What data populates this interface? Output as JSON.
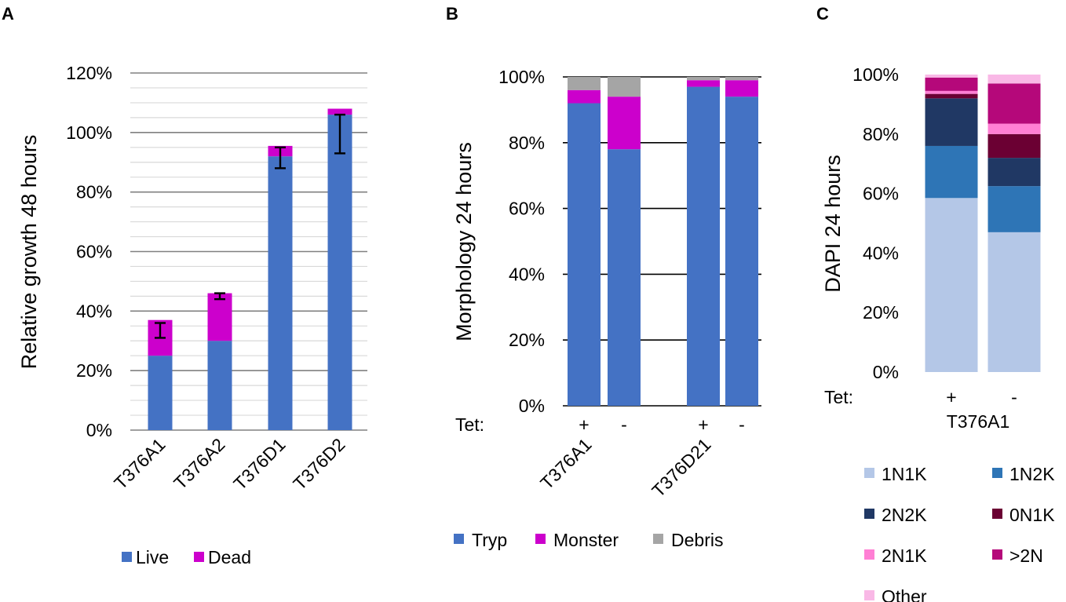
{
  "chart_data": [
    {
      "panel": "A",
      "type": "bar",
      "stacked": true,
      "title": "",
      "xlabel": "",
      "ylabel": "Relative growth 48 hours",
      "ylim": [
        0,
        120
      ],
      "yticks": [
        "0%",
        "20%",
        "40%",
        "60%",
        "80%",
        "100%",
        "120%"
      ],
      "grid": true,
      "categories": [
        "T376A1",
        "T376A2",
        "T376D1",
        "T376D2"
      ],
      "series": [
        {
          "name": "Live",
          "color": "#4472C4",
          "values": [
            25,
            30,
            92,
            106
          ]
        },
        {
          "name": "Dead",
          "color": "#CC00CC",
          "values": [
            12,
            16,
            3.5,
            2
          ]
        }
      ],
      "error_bars": [
        {
          "low": 31,
          "high": 36
        },
        {
          "low": 44,
          "high": 46
        },
        {
          "low": 88,
          "high": 95
        },
        {
          "low": 93,
          "high": 106
        }
      ],
      "legend": "bottom"
    },
    {
      "panel": "B",
      "type": "bar",
      "stacked": true,
      "title": "",
      "xlabel": "",
      "ylabel": "Morphology 24 hours",
      "ylim": [
        0,
        100
      ],
      "yticks": [
        "0%",
        "20%",
        "40%",
        "60%",
        "80%",
        "100%"
      ],
      "grid": true,
      "tet_label": "Tet:",
      "bar_tet": [
        "+",
        "-",
        "+",
        "-"
      ],
      "groups": [
        "T376A1",
        "T376D21"
      ],
      "series": [
        {
          "name": "Tryp",
          "color": "#4472C4",
          "values": [
            92,
            78,
            97,
            94
          ]
        },
        {
          "name": "Monster",
          "color": "#CC00CC",
          "values": [
            4,
            16,
            2,
            5
          ]
        },
        {
          "name": "Debris",
          "color": "#A5A5A5",
          "values": [
            4,
            6,
            1,
            1
          ]
        }
      ],
      "legend": "bottom"
    },
    {
      "panel": "C",
      "type": "bar",
      "stacked": true,
      "title": "",
      "xlabel": "",
      "ylabel": "DAPI 24 hours",
      "ylim": [
        0,
        100
      ],
      "yticks": [
        "0%",
        "20%",
        "40%",
        "60%",
        "80%",
        "100%"
      ],
      "grid": false,
      "tet_label": "Tet:",
      "bar_tet": [
        "+",
        "-"
      ],
      "group": "T376A1",
      "series": [
        {
          "name": "1N1K",
          "color": "#B4C7E7",
          "values": [
            58.5,
            47
          ]
        },
        {
          "name": "1N2K",
          "color": "#2E75B6",
          "values": [
            17.5,
            15.5
          ]
        },
        {
          "name": "2N2K",
          "color": "#203864",
          "values": [
            16,
            9.5
          ]
        },
        {
          "name": "0N1K",
          "color": "#6B0033",
          "values": [
            1.5,
            8
          ]
        },
        {
          "name": "2N1K",
          "color": "#FF7FD4",
          "values": [
            1,
            3.5
          ]
        },
        {
          "name": ">2N",
          "color": "#B5087A",
          "values": [
            4.5,
            13.5
          ]
        },
        {
          "name": "Other",
          "color": "#F9B8E6",
          "values": [
            1,
            3
          ]
        }
      ],
      "legend": "bottom"
    }
  ]
}
